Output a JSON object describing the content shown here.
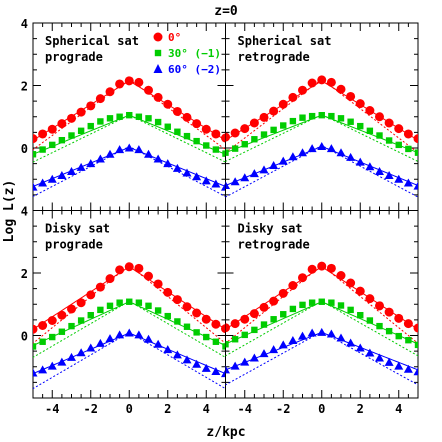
{
  "figure": {
    "title": "z=0",
    "xlabel": "z/kpc",
    "ylabel": "Log L(z)"
  },
  "colors": {
    "red": "#ff0000",
    "green": "#00cc00",
    "blue": "#0000ff",
    "frame": "#000000"
  },
  "legend": [
    {
      "label": "0°",
      "marker": "circle",
      "color": "#ff0000"
    },
    {
      "label": "30° (−1)",
      "marker": "square",
      "color": "#00cc00"
    },
    {
      "label": "60° (−2)",
      "marker": "triangle",
      "color": "#0000ff"
    }
  ],
  "chart_data": [
    {
      "type": "scatter",
      "panel": "top-left",
      "label_line1": "Spherical sat",
      "label_line2": "prograde",
      "xlim": [
        -5,
        5
      ],
      "ylim": [
        -2,
        4
      ],
      "x_ticks": [
        -4,
        -2,
        0,
        2,
        4
      ],
      "y_ticks": [
        0,
        2,
        4
      ],
      "series": [
        {
          "name": "0°",
          "color": "#ff0000",
          "marker": "circle",
          "x": [
            -5,
            -4.5,
            -4,
            -3.5,
            -3,
            -2.5,
            -2,
            -1.5,
            -1,
            -0.5,
            0,
            0.5,
            1,
            1.5,
            2,
            2.5,
            3,
            3.5,
            4,
            4.5,
            5
          ],
          "y": [
            0.3,
            0.45,
            0.6,
            0.78,
            0.95,
            1.15,
            1.35,
            1.58,
            1.8,
            2.05,
            2.15,
            2.1,
            1.85,
            1.62,
            1.4,
            1.17,
            0.98,
            0.78,
            0.6,
            0.45,
            0.32
          ],
          "solid_fit": [
            2.15,
            0.38
          ],
          "dotted_fit": [
            2.2,
            0.45
          ]
        },
        {
          "name": "30° (−1)",
          "color": "#00cc00",
          "marker": "square",
          "x": [
            -5,
            -4.5,
            -4,
            -3.5,
            -3,
            -2.5,
            -2,
            -1.5,
            -1,
            -0.5,
            0,
            0.5,
            1,
            1.5,
            2,
            2.5,
            3,
            3.5,
            4,
            4.5,
            5
          ],
          "y": [
            -0.2,
            -0.05,
            0.1,
            0.25,
            0.4,
            0.55,
            0.7,
            0.85,
            0.95,
            1.0,
            1.05,
            1.0,
            0.95,
            0.83,
            0.68,
            0.52,
            0.38,
            0.22,
            0.08,
            -0.05,
            -0.18
          ],
          "solid_fit": [
            1.05,
            0.25
          ],
          "dotted_fit": [
            1.05,
            0.3
          ]
        },
        {
          "name": "60° (−2)",
          "color": "#0000ff",
          "marker": "triangle",
          "x": [
            -5,
            -4.5,
            -4,
            -3.5,
            -3,
            -2.5,
            -2,
            -1.5,
            -1,
            -0.5,
            0,
            0.5,
            1,
            1.5,
            2,
            2.5,
            3,
            3.5,
            4,
            4.5,
            5
          ],
          "y": [
            -1.25,
            -1.12,
            -1.0,
            -0.88,
            -0.75,
            -0.62,
            -0.5,
            -0.35,
            -0.2,
            -0.05,
            0.0,
            -0.05,
            -0.2,
            -0.35,
            -0.5,
            -0.65,
            -0.8,
            -0.92,
            -1.05,
            -1.15,
            -1.25
          ],
          "solid_fit": [
            0.02,
            0.25
          ],
          "dotted_fit": [
            0.05,
            0.32
          ]
        }
      ]
    },
    {
      "type": "scatter",
      "panel": "top-right",
      "label_line1": "Spherical sat",
      "label_line2": "retrograde",
      "xlim": [
        -5,
        5
      ],
      "ylim": [
        -2,
        4
      ],
      "x_ticks": [
        -4,
        -2,
        0,
        2,
        4
      ],
      "y_ticks": [
        0,
        2,
        4
      ],
      "series": [
        {
          "name": "0°",
          "color": "#ff0000",
          "marker": "circle",
          "x": [
            -5,
            -4.5,
            -4,
            -3.5,
            -3,
            -2.5,
            -2,
            -1.5,
            -1,
            -0.5,
            0,
            0.5,
            1,
            1.5,
            2,
            2.5,
            3,
            3.5,
            4,
            4.5,
            5
          ],
          "y": [
            0.35,
            0.48,
            0.62,
            0.8,
            0.98,
            1.18,
            1.4,
            1.62,
            1.85,
            2.08,
            2.18,
            2.1,
            1.88,
            1.65,
            1.42,
            1.2,
            1.0,
            0.8,
            0.62,
            0.45,
            0.3
          ],
          "solid_fit": [
            2.15,
            0.38
          ],
          "dotted_fit": [
            2.2,
            0.47
          ]
        },
        {
          "name": "30° (−1)",
          "color": "#00cc00",
          "marker": "square",
          "x": [
            -5,
            -4.5,
            -4,
            -3.5,
            -3,
            -2.5,
            -2,
            -1.5,
            -1,
            -0.5,
            0,
            0.5,
            1,
            1.5,
            2,
            2.5,
            3,
            3.5,
            4,
            4.5,
            5
          ],
          "y": [
            -0.15,
            -0.02,
            0.12,
            0.28,
            0.43,
            0.58,
            0.72,
            0.86,
            0.97,
            1.02,
            1.05,
            1.02,
            0.95,
            0.84,
            0.7,
            0.55,
            0.4,
            0.24,
            0.1,
            -0.03,
            -0.15
          ],
          "solid_fit": [
            1.05,
            0.24
          ],
          "dotted_fit": [
            1.07,
            0.3
          ]
        },
        {
          "name": "60° (−2)",
          "color": "#0000ff",
          "marker": "triangle",
          "x": [
            -5,
            -4.5,
            -4,
            -3.5,
            -3,
            -2.5,
            -2,
            -1.5,
            -1,
            -0.5,
            0,
            0.5,
            1,
            1.5,
            2,
            2.5,
            3,
            3.5,
            4,
            4.5,
            5
          ],
          "y": [
            -1.2,
            -1.08,
            -0.95,
            -0.82,
            -0.7,
            -0.56,
            -0.42,
            -0.28,
            -0.15,
            -0.02,
            0.05,
            -0.02,
            -0.15,
            -0.3,
            -0.45,
            -0.6,
            -0.75,
            -0.88,
            -1.0,
            -1.12,
            -1.22
          ],
          "solid_fit": [
            0.05,
            0.25
          ],
          "dotted_fit": [
            0.08,
            0.33
          ]
        }
      ]
    },
    {
      "type": "scatter",
      "panel": "bottom-left",
      "label_line1": "Disky sat",
      "label_line2": "prograde",
      "xlim": [
        -5,
        5
      ],
      "ylim": [
        -2,
        4
      ],
      "x_ticks": [
        -4,
        -2,
        0,
        2,
        4
      ],
      "y_ticks": [
        0,
        2,
        4
      ],
      "series": [
        {
          "name": "0°",
          "color": "#ff0000",
          "marker": "circle",
          "x": [
            -5,
            -4.5,
            -4,
            -3.5,
            -3,
            -2.5,
            -2,
            -1.5,
            -1,
            -0.5,
            0,
            0.5,
            1,
            1.5,
            2,
            2.5,
            3,
            3.5,
            4,
            4.5,
            5
          ],
          "y": [
            0.2,
            0.32,
            0.48,
            0.65,
            0.85,
            1.05,
            1.3,
            1.55,
            1.82,
            2.1,
            2.2,
            2.15,
            1.9,
            1.65,
            1.38,
            1.15,
            0.92,
            0.72,
            0.52,
            0.36,
            0.22
          ],
          "solid_fit": [
            2.2,
            0.4
          ],
          "dotted_fit": [
            2.25,
            0.5
          ]
        },
        {
          "name": "30° (−1)",
          "color": "#00cc00",
          "marker": "square",
          "x": [
            -5,
            -4.5,
            -4,
            -3.5,
            -3,
            -2.5,
            -2,
            -1.5,
            -1,
            -0.5,
            0,
            0.5,
            1,
            1.5,
            2,
            2.5,
            3,
            3.5,
            4,
            4.5,
            5
          ],
          "y": [
            -0.35,
            -0.2,
            -0.05,
            0.12,
            0.3,
            0.48,
            0.65,
            0.82,
            0.95,
            1.05,
            1.08,
            1.05,
            0.95,
            0.8,
            0.62,
            0.45,
            0.28,
            0.1,
            -0.05,
            -0.2,
            -0.35
          ],
          "solid_fit": [
            1.08,
            0.28
          ],
          "dotted_fit": [
            1.1,
            0.36
          ]
        },
        {
          "name": "60° (−2)",
          "color": "#0000ff",
          "marker": "triangle",
          "x": [
            -5,
            -4.5,
            -4,
            -3.5,
            -3,
            -2.5,
            -2,
            -1.5,
            -1,
            -0.5,
            0,
            0.5,
            1,
            1.5,
            2,
            2.5,
            3,
            3.5,
            4,
            4.5,
            5
          ],
          "y": [
            -1.2,
            -1.1,
            -0.98,
            -0.85,
            -0.7,
            -0.55,
            -0.4,
            -0.25,
            -0.1,
            0.02,
            0.08,
            0.02,
            -0.12,
            -0.28,
            -0.45,
            -0.62,
            -0.78,
            -0.92,
            -1.05,
            -1.15,
            -1.22
          ],
          "solid_fit": [
            0.08,
            0.26
          ],
          "dotted_fit": [
            0.1,
            0.36
          ]
        }
      ]
    },
    {
      "type": "scatter",
      "panel": "bottom-right",
      "label_line1": "Disky sat",
      "label_line2": "retrograde",
      "xlim": [
        -5,
        5
      ],
      "ylim": [
        -2,
        4
      ],
      "x_ticks": [
        -4,
        -2,
        0,
        2,
        4
      ],
      "y_ticks": [
        0,
        2,
        4
      ],
      "series": [
        {
          "name": "0°",
          "color": "#ff0000",
          "marker": "circle",
          "x": [
            -5,
            -4.5,
            -4,
            -3.5,
            -3,
            -2.5,
            -2,
            -1.5,
            -1,
            -0.5,
            0,
            0.5,
            1,
            1.5,
            2,
            2.5,
            3,
            3.5,
            4,
            4.5,
            5
          ],
          "y": [
            0.25,
            0.38,
            0.52,
            0.7,
            0.9,
            1.1,
            1.35,
            1.6,
            1.85,
            2.12,
            2.22,
            2.15,
            1.92,
            1.68,
            1.42,
            1.18,
            0.95,
            0.75,
            0.55,
            0.38,
            0.24
          ],
          "solid_fit": [
            2.2,
            0.4
          ],
          "dotted_fit": [
            2.25,
            0.5
          ]
        },
        {
          "name": "30° (−1)",
          "color": "#00cc00",
          "marker": "square",
          "x": [
            -5,
            -4.5,
            -4,
            -3.5,
            -3,
            -2.5,
            -2,
            -1.5,
            -1,
            -0.5,
            0,
            0.5,
            1,
            1.5,
            2,
            2.5,
            3,
            3.5,
            4,
            4.5,
            5
          ],
          "y": [
            -0.28,
            -0.12,
            0.02,
            0.18,
            0.35,
            0.52,
            0.68,
            0.85,
            0.98,
            1.05,
            1.08,
            1.05,
            0.96,
            0.82,
            0.65,
            0.48,
            0.3,
            0.14,
            -0.02,
            -0.15,
            -0.3
          ],
          "solid_fit": [
            1.08,
            0.27
          ],
          "dotted_fit": [
            1.1,
            0.35
          ]
        },
        {
          "name": "60° (−2)",
          "color": "#0000ff",
          "marker": "triangle",
          "x": [
            -5,
            -4.5,
            -4,
            -3.5,
            -3,
            -2.5,
            -2,
            -1.5,
            -1,
            -0.5,
            0,
            0.5,
            1,
            1.5,
            2,
            2.5,
            3,
            3.5,
            4,
            4.5,
            5
          ],
          "y": [
            -1.1,
            -0.98,
            -0.85,
            -0.72,
            -0.58,
            -0.45,
            -0.3,
            -0.16,
            -0.02,
            0.08,
            0.1,
            0.05,
            -0.08,
            -0.24,
            -0.4,
            -0.56,
            -0.72,
            -0.86,
            -0.98,
            -1.08,
            -1.16
          ],
          "solid_fit": [
            0.1,
            0.24
          ],
          "dotted_fit": [
            0.12,
            0.34
          ]
        }
      ]
    }
  ]
}
